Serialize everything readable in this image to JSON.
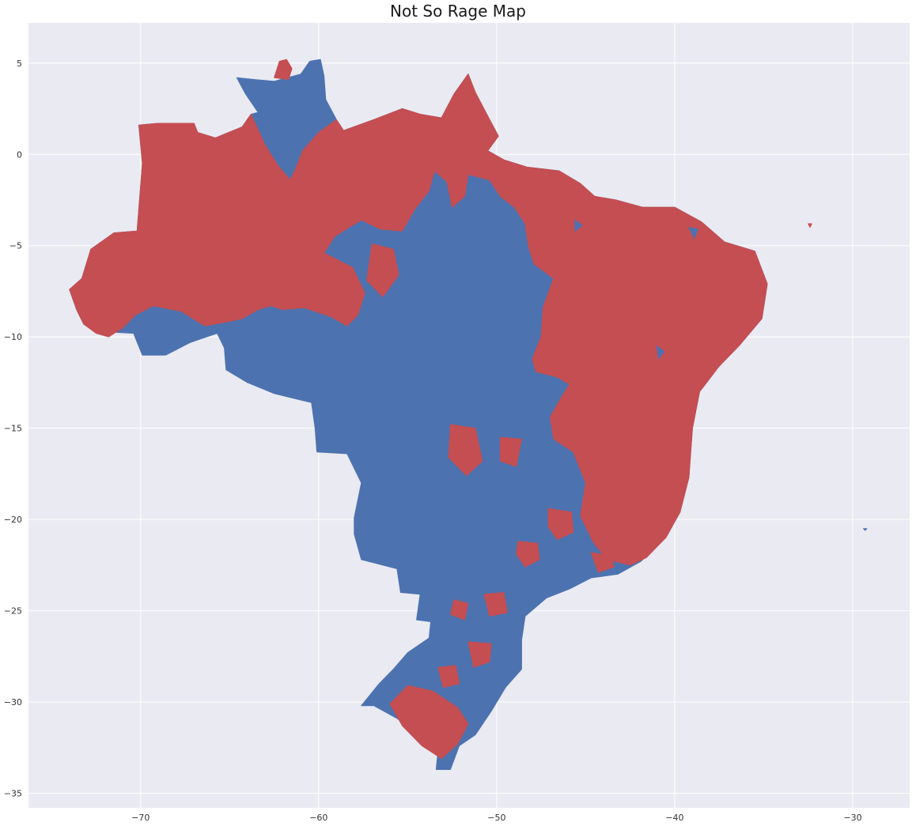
{
  "title": "Not So Rage Map",
  "colors": {
    "background": "#eaeaf2",
    "grid": "#ffffff",
    "red_region": "#c44e52",
    "blue_region": "#4c72b0"
  },
  "chart_data": {
    "type": "map",
    "xlim": [
      -76.3,
      -26.8
    ],
    "ylim": [
      -35.8,
      7.2
    ],
    "x_ticks": [
      -70,
      -60,
      -50,
      -40,
      -30
    ],
    "y_ticks": [
      5,
      0,
      -5,
      -10,
      -15,
      -20,
      -25,
      -30,
      -35
    ],
    "x_tick_labels": [
      "−70",
      "−60",
      "−50",
      "−40",
      "−30"
    ],
    "y_tick_labels": [
      "5",
      "0",
      "−5",
      "−10",
      "−15",
      "−20",
      "−25",
      "−30",
      "−35"
    ],
    "grid": true,
    "regions": [
      {
        "class": "blue",
        "outline": [
          [
            -74.0,
            -7.4
          ],
          [
            -73.3,
            -6.8
          ],
          [
            -72.8,
            -5.2
          ],
          [
            -71.5,
            -4.3
          ],
          [
            -70.2,
            -4.2
          ],
          [
            -69.9,
            -0.5
          ],
          [
            -70.1,
            1.6
          ],
          [
            -69.0,
            1.7
          ],
          [
            -67.0,
            1.7
          ],
          [
            -66.8,
            1.2
          ],
          [
            -65.8,
            0.9
          ],
          [
            -64.3,
            1.5
          ],
          [
            -63.8,
            2.2
          ],
          [
            -63.4,
            2.3
          ],
          [
            -64.1,
            3.3
          ],
          [
            -64.6,
            4.2
          ],
          [
            -63.6,
            4.1
          ],
          [
            -62.5,
            4.0
          ],
          [
            -61.0,
            4.4
          ],
          [
            -60.5,
            5.1
          ],
          [
            -59.9,
            5.2
          ],
          [
            -59.7,
            4.3
          ],
          [
            -59.6,
            3.0
          ],
          [
            -59.0,
            1.9
          ],
          [
            -58.6,
            1.3
          ],
          [
            -56.9,
            1.9
          ],
          [
            -55.3,
            2.5
          ],
          [
            -54.3,
            2.2
          ],
          [
            -53.1,
            2.0
          ],
          [
            -52.4,
            3.3
          ],
          [
            -51.6,
            4.4
          ],
          [
            -51.2,
            3.4
          ],
          [
            -50.5,
            2.1
          ],
          [
            -49.9,
            1.0
          ],
          [
            -50.5,
            0.2
          ],
          [
            -49.6,
            -0.3
          ],
          [
            -48.3,
            -0.7
          ],
          [
            -46.5,
            -0.9
          ],
          [
            -45.3,
            -1.6
          ],
          [
            -44.5,
            -2.3
          ],
          [
            -43.3,
            -2.5
          ],
          [
            -41.8,
            -2.9
          ],
          [
            -40.0,
            -2.9
          ],
          [
            -38.5,
            -3.7
          ],
          [
            -37.2,
            -4.8
          ],
          [
            -35.5,
            -5.3
          ],
          [
            -34.8,
            -7.1
          ],
          [
            -35.1,
            -9.0
          ],
          [
            -36.4,
            -10.5
          ],
          [
            -37.5,
            -11.6
          ],
          [
            -38.6,
            -13.0
          ],
          [
            -39.0,
            -15.0
          ],
          [
            -39.2,
            -17.7
          ],
          [
            -39.7,
            -19.6
          ],
          [
            -40.5,
            -21.0
          ],
          [
            -41.9,
            -22.3
          ],
          [
            -43.2,
            -23.0
          ],
          [
            -44.7,
            -23.2
          ],
          [
            -45.9,
            -23.8
          ],
          [
            -47.2,
            -24.3
          ],
          [
            -48.4,
            -25.3
          ],
          [
            -48.6,
            -26.6
          ],
          [
            -48.6,
            -28.2
          ],
          [
            -49.5,
            -29.2
          ],
          [
            -50.3,
            -30.5
          ],
          [
            -51.2,
            -31.8
          ],
          [
            -52.1,
            -32.4
          ],
          [
            -52.6,
            -33.7
          ],
          [
            -53.4,
            -33.7
          ],
          [
            -53.3,
            -32.7
          ],
          [
            -53.7,
            -32.3
          ],
          [
            -54.6,
            -31.6
          ],
          [
            -55.6,
            -30.9
          ],
          [
            -56.9,
            -30.2
          ],
          [
            -57.6,
            -30.2
          ],
          [
            -56.6,
            -29.0
          ],
          [
            -55.8,
            -28.2
          ],
          [
            -55.0,
            -27.3
          ],
          [
            -53.8,
            -26.5
          ],
          [
            -53.7,
            -25.6
          ],
          [
            -54.5,
            -25.5
          ],
          [
            -54.3,
            -24.1
          ],
          [
            -55.4,
            -24.0
          ],
          [
            -55.6,
            -22.7
          ],
          [
            -57.6,
            -22.2
          ],
          [
            -58.0,
            -20.8
          ],
          [
            -58.0,
            -19.9
          ],
          [
            -57.6,
            -18.0
          ],
          [
            -58.4,
            -16.4
          ],
          [
            -60.1,
            -16.3
          ],
          [
            -60.2,
            -15.0
          ],
          [
            -60.4,
            -13.6
          ],
          [
            -62.5,
            -13.1
          ],
          [
            -64.0,
            -12.5
          ],
          [
            -65.2,
            -11.8
          ],
          [
            -65.3,
            -10.6
          ],
          [
            -65.7,
            -9.8
          ],
          [
            -67.2,
            -10.3
          ],
          [
            -68.6,
            -11.0
          ],
          [
            -69.9,
            -11.0
          ],
          [
            -70.4,
            -9.8
          ],
          [
            -72.3,
            -9.7
          ],
          [
            -73.2,
            -9.3
          ],
          [
            -73.6,
            -8.5
          ],
          [
            -74.0,
            -7.4
          ]
        ]
      },
      {
        "class": "red",
        "outline": [
          [
            -72.8,
            -5.2
          ],
          [
            -71.5,
            -4.3
          ],
          [
            -70.2,
            -4.2
          ],
          [
            -69.9,
            -0.5
          ],
          [
            -70.1,
            1.6
          ],
          [
            -69.0,
            1.7
          ],
          [
            -67.0,
            1.7
          ],
          [
            -66.8,
            1.2
          ],
          [
            -65.8,
            0.9
          ],
          [
            -64.3,
            1.5
          ],
          [
            -63.8,
            2.2
          ],
          [
            -63.0,
            0.5
          ],
          [
            -62.3,
            -0.6
          ],
          [
            -61.6,
            -1.4
          ],
          [
            -61.3,
            -0.8
          ],
          [
            -60.9,
            0.2
          ],
          [
            -60.0,
            1.2
          ],
          [
            -59.0,
            1.9
          ],
          [
            -58.6,
            1.3
          ],
          [
            -56.9,
            1.9
          ],
          [
            -55.3,
            2.5
          ],
          [
            -54.3,
            2.2
          ],
          [
            -53.1,
            2.0
          ],
          [
            -52.4,
            3.3
          ],
          [
            -51.6,
            4.4
          ],
          [
            -51.2,
            3.4
          ],
          [
            -50.5,
            2.1
          ],
          [
            -49.9,
            1.0
          ],
          [
            -50.5,
            0.2
          ],
          [
            -49.6,
            -0.3
          ],
          [
            -48.3,
            -0.7
          ],
          [
            -46.5,
            -0.9
          ],
          [
            -45.3,
            -1.6
          ],
          [
            -44.5,
            -2.3
          ],
          [
            -43.3,
            -2.5
          ],
          [
            -41.8,
            -2.9
          ],
          [
            -40.0,
            -2.9
          ],
          [
            -38.5,
            -3.7
          ],
          [
            -37.2,
            -4.8
          ],
          [
            -35.5,
            -5.3
          ],
          [
            -34.8,
            -7.1
          ],
          [
            -35.1,
            -9.0
          ],
          [
            -36.4,
            -10.5
          ],
          [
            -37.5,
            -11.6
          ],
          [
            -38.6,
            -13.0
          ],
          [
            -39.0,
            -15.0
          ],
          [
            -39.2,
            -17.7
          ],
          [
            -39.7,
            -19.6
          ],
          [
            -40.5,
            -21.0
          ],
          [
            -41.6,
            -22.1
          ],
          [
            -42.5,
            -22.5
          ],
          [
            -43.8,
            -22.2
          ],
          [
            -44.6,
            -21.2
          ],
          [
            -45.3,
            -19.8
          ],
          [
            -45.0,
            -18.0
          ],
          [
            -45.7,
            -16.3
          ],
          [
            -46.8,
            -15.6
          ],
          [
            -47.0,
            -14.4
          ],
          [
            -46.3,
            -13.2
          ],
          [
            -45.9,
            -12.6
          ],
          [
            -46.6,
            -12.2
          ],
          [
            -47.8,
            -11.9
          ],
          [
            -48.0,
            -11.2
          ],
          [
            -47.5,
            -10.0
          ],
          [
            -47.4,
            -8.4
          ],
          [
            -46.8,
            -6.8
          ],
          [
            -47.9,
            -6.0
          ],
          [
            -48.2,
            -5.1
          ],
          [
            -48.4,
            -3.8
          ],
          [
            -49.0,
            -2.9
          ],
          [
            -49.8,
            -2.3
          ],
          [
            -50.4,
            -1.4
          ],
          [
            -51.6,
            -1.1
          ],
          [
            -51.8,
            -2.3
          ],
          [
            -52.5,
            -2.9
          ],
          [
            -52.8,
            -1.5
          ],
          [
            -53.5,
            -0.9
          ],
          [
            -53.8,
            -2.0
          ],
          [
            -54.6,
            -3.0
          ],
          [
            -55.3,
            -4.2
          ],
          [
            -56.5,
            -4.1
          ],
          [
            -57.6,
            -3.6
          ],
          [
            -58.3,
            -4.0
          ],
          [
            -59.1,
            -4.5
          ],
          [
            -59.7,
            -5.4
          ],
          [
            -58.1,
            -6.2
          ],
          [
            -57.4,
            -7.6
          ],
          [
            -57.8,
            -8.8
          ],
          [
            -58.4,
            -9.4
          ],
          [
            -59.3,
            -8.9
          ],
          [
            -60.8,
            -8.4
          ],
          [
            -62.0,
            -8.5
          ],
          [
            -62.7,
            -8.3
          ],
          [
            -63.4,
            -8.5
          ],
          [
            -64.3,
            -9.0
          ],
          [
            -65.3,
            -9.2
          ],
          [
            -66.4,
            -9.4
          ],
          [
            -67.7,
            -8.6
          ],
          [
            -69.3,
            -8.3
          ],
          [
            -70.3,
            -8.8
          ],
          [
            -71.0,
            -9.5
          ],
          [
            -71.8,
            -10.0
          ],
          [
            -72.5,
            -9.8
          ],
          [
            -73.2,
            -9.3
          ],
          [
            -73.6,
            -8.5
          ],
          [
            -74.0,
            -7.4
          ],
          [
            -73.3,
            -6.8
          ],
          [
            -72.8,
            -5.2
          ]
        ]
      },
      {
        "class": "red",
        "outline": [
          [
            -62.5,
            4.2
          ],
          [
            -61.7,
            4.1
          ],
          [
            -61.5,
            4.7
          ],
          [
            -61.8,
            5.2
          ],
          [
            -62.2,
            5.1
          ]
        ]
      },
      {
        "class": "red",
        "outline": [
          [
            -57.0,
            -4.9
          ],
          [
            -55.8,
            -5.2
          ],
          [
            -55.5,
            -6.6
          ],
          [
            -56.4,
            -7.8
          ],
          [
            -57.3,
            -6.9
          ]
        ]
      },
      {
        "class": "red",
        "outline": [
          [
            -52.6,
            -14.8
          ],
          [
            -51.2,
            -15.0
          ],
          [
            -50.8,
            -16.8
          ],
          [
            -51.7,
            -17.6
          ],
          [
            -52.7,
            -16.6
          ]
        ]
      },
      {
        "class": "red",
        "outline": [
          [
            -49.8,
            -15.5
          ],
          [
            -48.6,
            -15.6
          ],
          [
            -48.9,
            -17.1
          ],
          [
            -49.8,
            -16.8
          ]
        ]
      },
      {
        "class": "red",
        "outline": [
          [
            -47.1,
            -19.4
          ],
          [
            -45.8,
            -19.6
          ],
          [
            -45.7,
            -20.7
          ],
          [
            -46.6,
            -21.1
          ],
          [
            -47.1,
            -20.4
          ]
        ]
      },
      {
        "class": "red",
        "outline": [
          [
            -48.8,
            -21.2
          ],
          [
            -47.7,
            -21.3
          ],
          [
            -47.6,
            -22.2
          ],
          [
            -48.4,
            -22.6
          ],
          [
            -48.9,
            -21.9
          ]
        ]
      },
      {
        "class": "red",
        "outline": [
          [
            -50.7,
            -24.1
          ],
          [
            -49.6,
            -24.0
          ],
          [
            -49.4,
            -25.1
          ],
          [
            -50.4,
            -25.3
          ]
        ]
      },
      {
        "class": "red",
        "outline": [
          [
            -52.4,
            -24.4
          ],
          [
            -51.6,
            -24.6
          ],
          [
            -51.8,
            -25.5
          ],
          [
            -52.6,
            -25.2
          ]
        ]
      },
      {
        "class": "red",
        "outline": [
          [
            -51.6,
            -26.7
          ],
          [
            -50.3,
            -26.8
          ],
          [
            -50.4,
            -27.8
          ],
          [
            -51.3,
            -28.1
          ]
        ]
      },
      {
        "class": "red",
        "outline": [
          [
            -56.0,
            -30.1
          ],
          [
            -55.0,
            -29.1
          ],
          [
            -53.6,
            -29.4
          ],
          [
            -52.2,
            -30.3
          ],
          [
            -51.6,
            -31.2
          ],
          [
            -52.2,
            -32.3
          ],
          [
            -53.1,
            -33.1
          ],
          [
            -54.2,
            -32.4
          ],
          [
            -55.3,
            -31.3
          ]
        ]
      },
      {
        "class": "red",
        "outline": [
          [
            -53.3,
            -28.1
          ],
          [
            -52.3,
            -28.0
          ],
          [
            -52.1,
            -29.0
          ],
          [
            -53.0,
            -29.2
          ]
        ]
      },
      {
        "class": "red",
        "outline": [
          [
            -44.7,
            -21.8
          ],
          [
            -43.6,
            -22.0
          ],
          [
            -43.4,
            -22.6
          ],
          [
            -44.3,
            -22.9
          ]
        ]
      },
      {
        "class": "red",
        "outline": [
          [
            -32.5,
            -3.8
          ],
          [
            -32.3,
            -3.8
          ],
          [
            -32.4,
            -4.0
          ]
        ]
      },
      {
        "class": "blue",
        "outline": [
          [
            -29.4,
            -20.5
          ],
          [
            -29.2,
            -20.5
          ],
          [
            -29.3,
            -20.6
          ]
        ]
      },
      {
        "class": "blue",
        "outline": [
          [
            -39.2,
            -4.0
          ],
          [
            -38.7,
            -4.1
          ],
          [
            -38.9,
            -4.6
          ]
        ]
      },
      {
        "class": "blue",
        "outline": [
          [
            -41.0,
            -10.5
          ],
          [
            -40.6,
            -10.8
          ],
          [
            -40.9,
            -11.2
          ]
        ]
      },
      {
        "class": "blue",
        "outline": [
          [
            -45.6,
            -3.6
          ],
          [
            -45.2,
            -3.9
          ],
          [
            -45.6,
            -4.2
          ]
        ]
      }
    ]
  }
}
